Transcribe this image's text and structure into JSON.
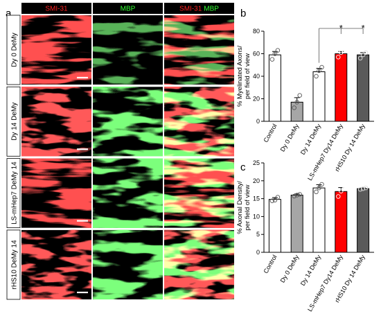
{
  "figure": {
    "panel_a": {
      "letter": "a",
      "headers": {
        "smi": "SMI-31",
        "mbp": "MBP",
        "merge_smi": "SMI-31",
        "merge_mbp": "MBP"
      },
      "rows": [
        "Dy 0 DeMy",
        "Dy 14 DeMy",
        "LS-mHep7 DeMy 14",
        "rHS10 DeMy 14"
      ],
      "colors": {
        "smi": "#ff2020",
        "mbp": "#33ff33",
        "header_bg": "#000000"
      }
    },
    "panel_b_letter": "b",
    "panel_c_letter": "c"
  },
  "chart_data": [
    {
      "type": "bar",
      "panel": "b",
      "categories": [
        "Control",
        "Dy 0 DeMy",
        "Dy 14 DeMy",
        "LS-mHep7 Dy14 DeMy",
        "rHS10 Dy 14 DeMy"
      ],
      "values": [
        59,
        17,
        44,
        60,
        59
      ],
      "errors": [
        3,
        4,
        3,
        2,
        2
      ],
      "points": [
        [
          55,
          60,
          63
        ],
        [
          12,
          17,
          23
        ],
        [
          40,
          45,
          48
        ],
        [
          57,
          61,
          63
        ],
        [
          56,
          59,
          61
        ]
      ],
      "bar_colors": [
        "#ffffff",
        "#a6a6a6",
        "#ffffff",
        "#ff0000",
        "#5a5a5a"
      ],
      "ylabel_line1": "% Myelinated Axons/",
      "ylabel_line2": "per field of view",
      "ylim": [
        0,
        80
      ],
      "yticks": [
        "0",
        "20",
        "40",
        "60",
        "80"
      ],
      "significance": {
        "bracket_from": "Dy 14 DeMy",
        "to": [
          "LS-mHep7 Dy14 DeMy",
          "rHS10 Dy 14 DeMy"
        ],
        "marks": [
          "*",
          "*"
        ]
      }
    },
    {
      "type": "bar",
      "panel": "c",
      "categories": [
        "Control",
        "Dy 0 DeMy",
        "Dy 14 DeMy",
        "LS-mHep7 Dy14 DeMy",
        "rHS10 Dy 14 DeMy"
      ],
      "values": [
        14.8,
        16.0,
        18.0,
        17.0,
        17.8
      ],
      "errors": [
        0.5,
        0.3,
        0.9,
        1.1,
        0.2
      ],
      "points": [
        [
          14.4,
          14.6,
          15.4
        ],
        [
          15.7,
          16.0,
          16.2
        ],
        [
          16.9,
          18.0,
          19.0
        ],
        [
          15.6,
          17.1,
          18.6
        ],
        [
          17.6,
          17.8,
          18.0
        ]
      ],
      "bar_colors": [
        "#ffffff",
        "#a6a6a6",
        "#ffffff",
        "#ff0000",
        "#5a5a5a"
      ],
      "ylabel_line1": "% Axonal Density/",
      "ylabel_line2": "per field of view",
      "ylim": [
        0,
        25
      ],
      "yticks": [
        "0",
        "5",
        "10",
        "15",
        "20",
        "25"
      ]
    }
  ]
}
